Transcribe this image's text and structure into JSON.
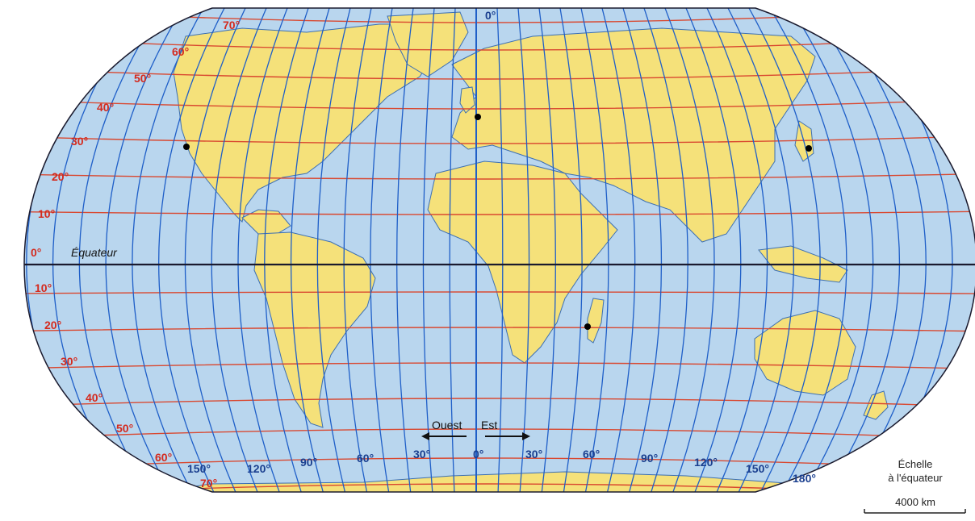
{
  "map": {
    "colors": {
      "ocean": "#b9d6ee",
      "land": "#f5e17a",
      "coast": "#3c6fb3",
      "meridian": "#1f5fc8",
      "parallel": "#d94830",
      "equator_line": "#1a1a2e",
      "city_dot": "#000000"
    },
    "prime_meridian_label": "0°",
    "equator_label": "Équateur",
    "latitude_labels": {
      "north": [
        "70°",
        "60°",
        "50°",
        "40°",
        "30°",
        "20°",
        "10°"
      ],
      "equator": "0°",
      "south": [
        "10°",
        "20°",
        "30°",
        "40°",
        "50°",
        "60°",
        "70°"
      ]
    },
    "longitude_labels": [
      "150°",
      "120°",
      "90°",
      "60°",
      "30°",
      "0°",
      "30°",
      "60°",
      "90°",
      "120°",
      "150°",
      "180°"
    ],
    "directions": {
      "west": "Ouest",
      "east": "Est"
    },
    "scale": {
      "title_line1": "Échelle",
      "title_line2": "à l'équateur",
      "value": "4000 km"
    },
    "icons": {
      "arrow_west": "arrow-left-icon",
      "arrow_east": "arrow-right-icon",
      "city": "dot-icon"
    }
  }
}
